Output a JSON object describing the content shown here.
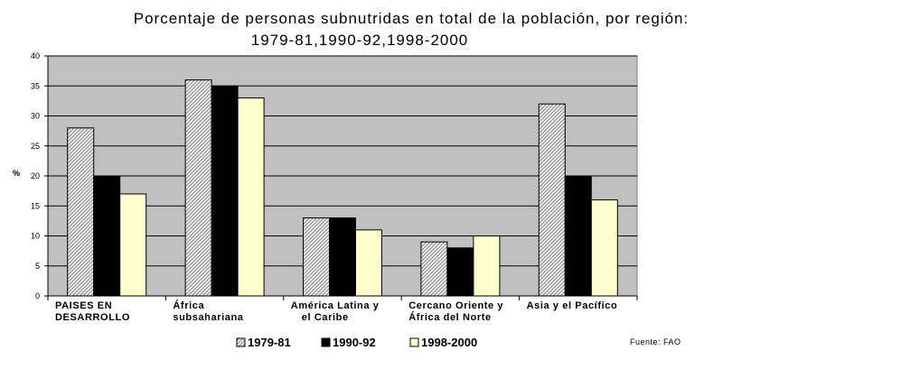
{
  "chart_data": {
    "type": "bar",
    "title": "Porcentaje de personas subnutridas en total de la población, por región:",
    "subtitle": "1979-81,1990-92,1998-2000",
    "ylabel": "%",
    "xlabel": "",
    "ylim": [
      0,
      40
    ],
    "yticks": [
      0,
      5,
      10,
      15,
      20,
      25,
      30,
      35,
      40
    ],
    "grid": true,
    "legend_position": "bottom",
    "categories": [
      [
        "PAISES EN",
        "DESARROLLO"
      ],
      [
        "África",
        "subsahariana"
      ],
      [
        "América Latina y",
        "el Caribe"
      ],
      [
        "Cercano Oriente y",
        "África del Norte"
      ],
      [
        "Asia y el Pacífico"
      ]
    ],
    "series": [
      {
        "name": "1979-81",
        "values": [
          28,
          36,
          13,
          9,
          32
        ],
        "color": "#dcdcdc",
        "pattern": "hatch"
      },
      {
        "name": "1990-92",
        "values": [
          20,
          35,
          13,
          8,
          20
        ],
        "color": "#000000"
      },
      {
        "name": "1998-2000",
        "values": [
          17,
          33,
          11,
          10,
          16
        ],
        "color": "#ffffcc"
      }
    ],
    "source": "Fuente: FAO",
    "colors": {
      "plot_background": "#c0c0c0",
      "gridline": "#000000"
    }
  }
}
